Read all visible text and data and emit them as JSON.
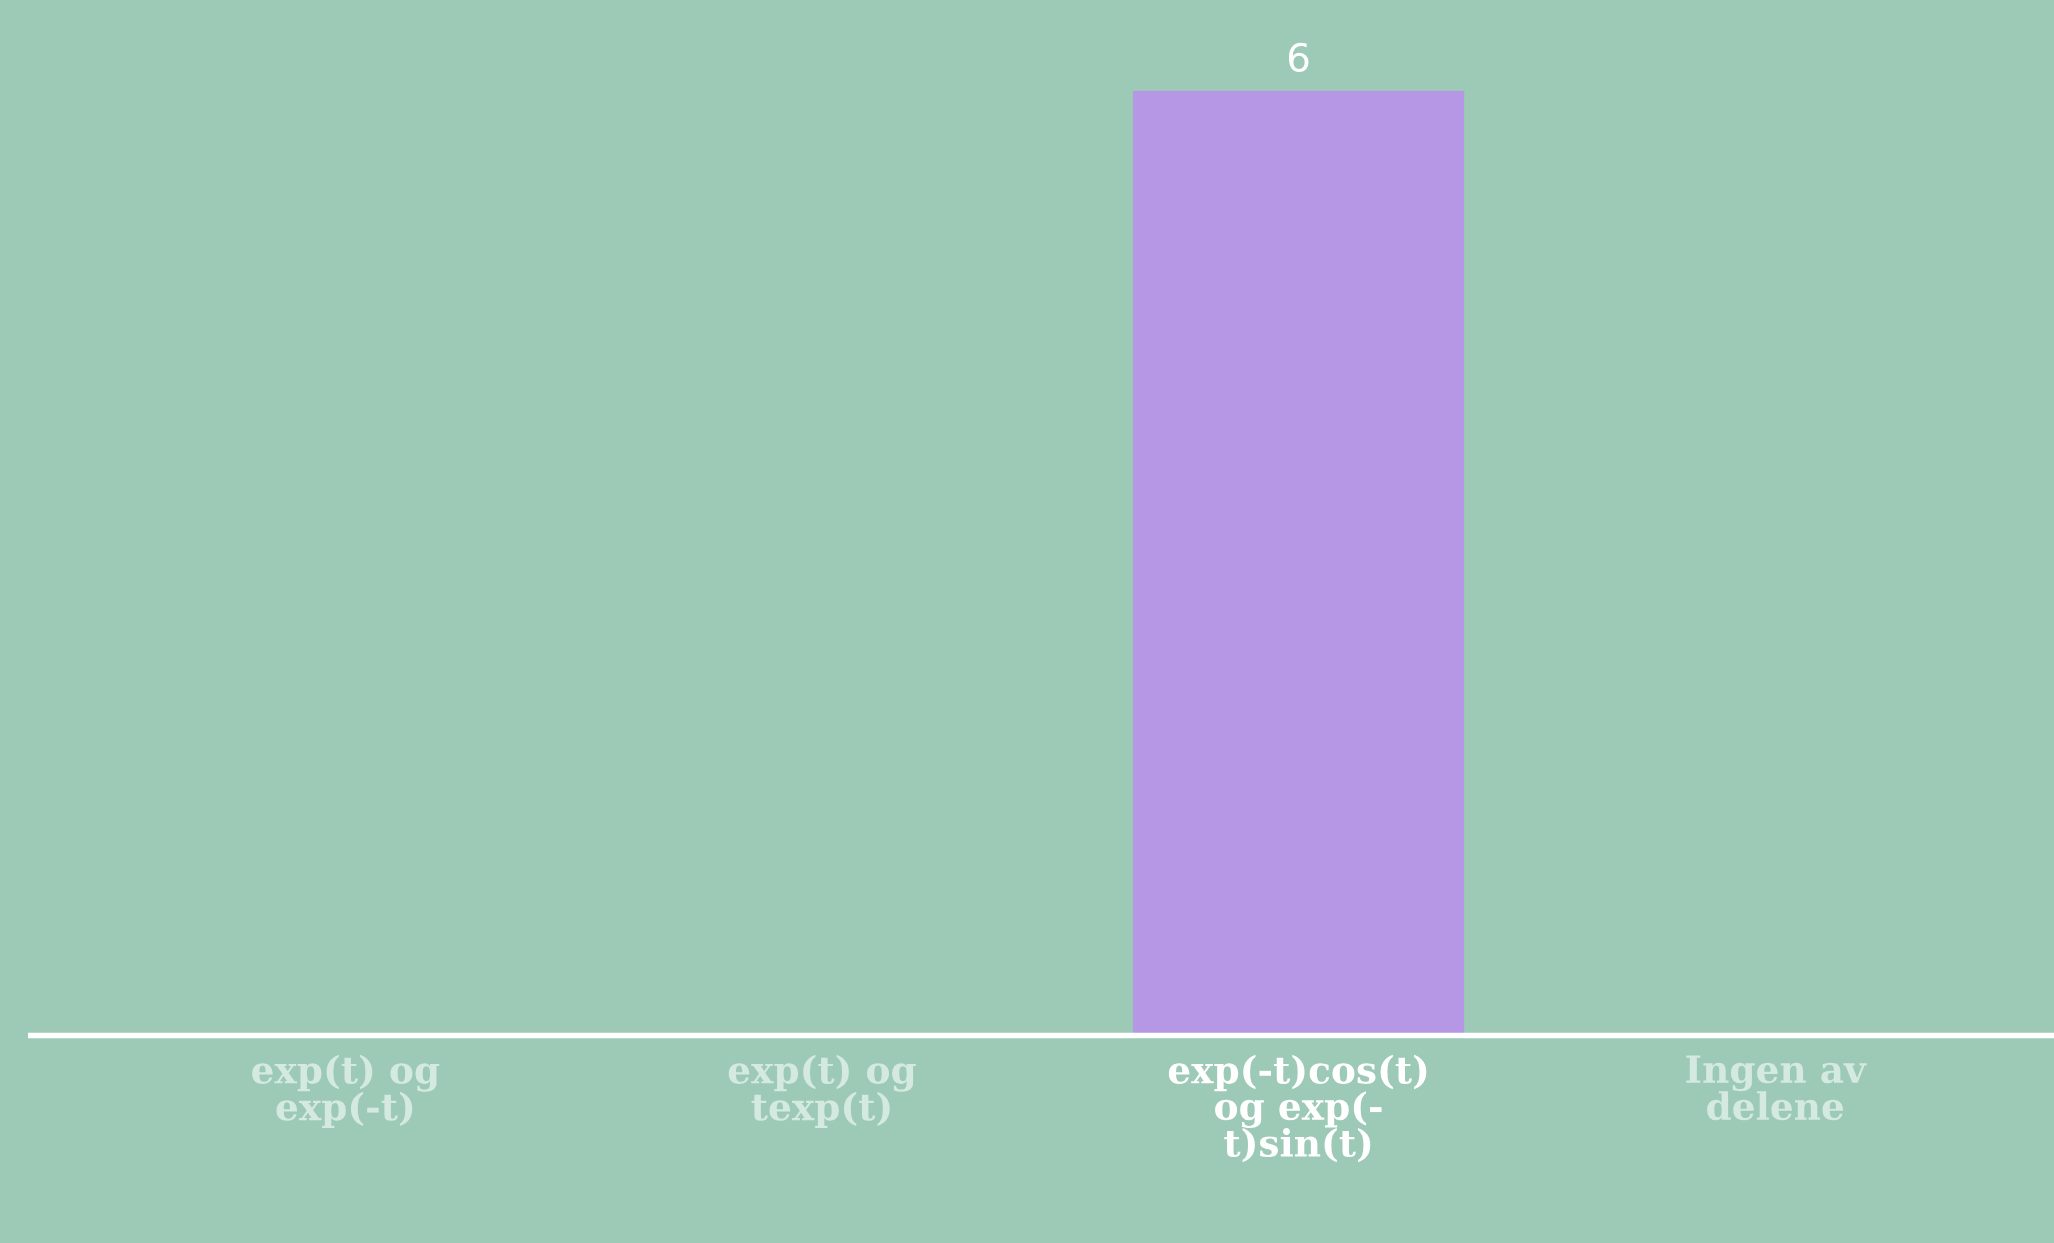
{
  "chart_data": {
    "type": "bar",
    "categories": [
      "exp(t) og\nexp(-t)",
      "exp(t) og\ntexp(t)",
      "exp(-t)cos(t)\nog exp(-\nt)sin(t)",
      "Ingen av\ndelene"
    ],
    "values": [
      0,
      0,
      6,
      0
    ],
    "color": "#b597e5",
    "value_labels": [
      null,
      null,
      "6",
      null
    ],
    "grid": false,
    "legend": false
  }
}
